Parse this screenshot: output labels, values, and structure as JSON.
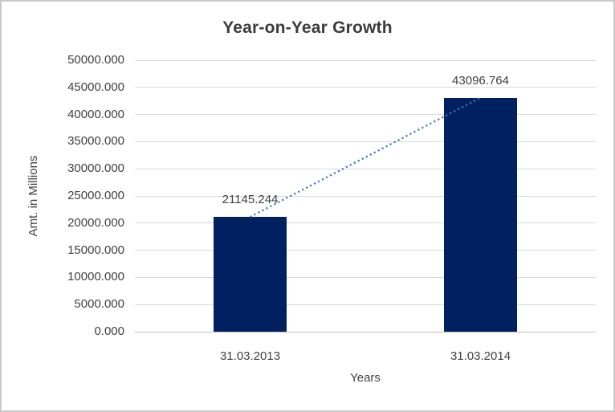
{
  "chart_data": {
    "type": "bar",
    "title": "Year-on-Year Growth",
    "categories": [
      "31.03.2013",
      "31.03.2014"
    ],
    "values": [
      21145.244,
      43096.764
    ],
    "data_labels": [
      "21145.244",
      "43096.764"
    ],
    "xlabel": "Years",
    "ylabel": "Amt. in Millions",
    "ylim": [
      0,
      50000
    ],
    "ytick_step": 5000,
    "ytick_decimals": 3,
    "grid": true,
    "legend": "none",
    "trendline": {
      "type": "linear",
      "style": "dotted",
      "color": "#4472C4",
      "connects": "bar tops, first to last category"
    },
    "colors": {
      "bar": "#002060",
      "trendline": "#4472C4",
      "gridline": "#d9d9d9",
      "axis_line": "#bfbfbf",
      "text": "#404040",
      "title_text": "#3b3b3b",
      "border": "#c9c9c9",
      "background": "#ffffff"
    }
  }
}
